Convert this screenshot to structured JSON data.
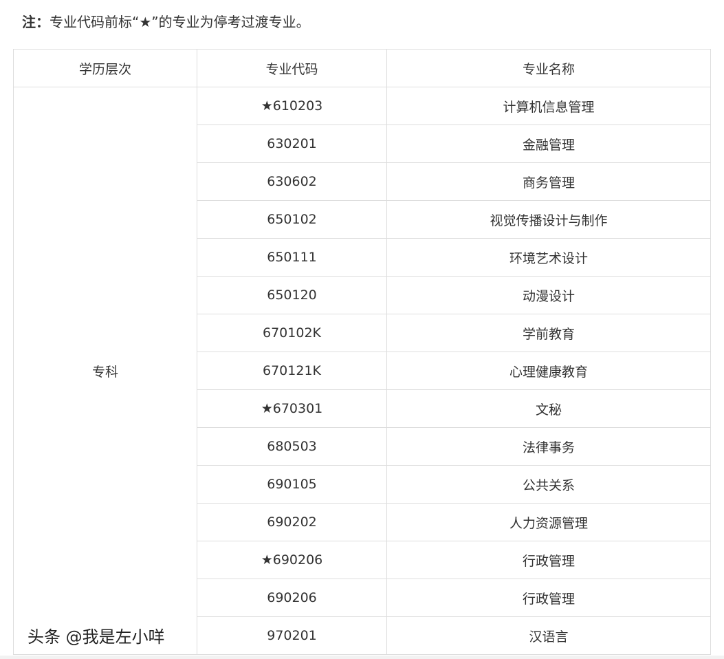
{
  "note": {
    "label": "注：",
    "text": "专业代码前标“★”的专业为停考过渡专业。"
  },
  "table": {
    "headers": [
      "学历层次",
      "专业代码",
      "专业名称"
    ],
    "level": "专科",
    "rows": [
      {
        "code": "★610203",
        "name": "计算机信息管理"
      },
      {
        "code": "630201",
        "name": "金融管理"
      },
      {
        "code": "630602",
        "name": "商务管理"
      },
      {
        "code": "650102",
        "name": "视觉传播设计与制作"
      },
      {
        "code": "650111",
        "name": "环境艺术设计"
      },
      {
        "code": "650120",
        "name": "动漫设计"
      },
      {
        "code": "670102K",
        "name": "学前教育"
      },
      {
        "code": "670121K",
        "name": "心理健康教育"
      },
      {
        "code": "★670301",
        "name": "文秘"
      },
      {
        "code": "680503",
        "name": "法律事务"
      },
      {
        "code": "690105",
        "name": "公共关系"
      },
      {
        "code": "690202",
        "name": "人力资源管理"
      },
      {
        "code": "★690206",
        "name": "行政管理"
      },
      {
        "code": "690206",
        "name": "行政管理"
      },
      {
        "code": "970201",
        "name": "汉语言"
      }
    ]
  },
  "watermark": "头条 @我是左小咩"
}
